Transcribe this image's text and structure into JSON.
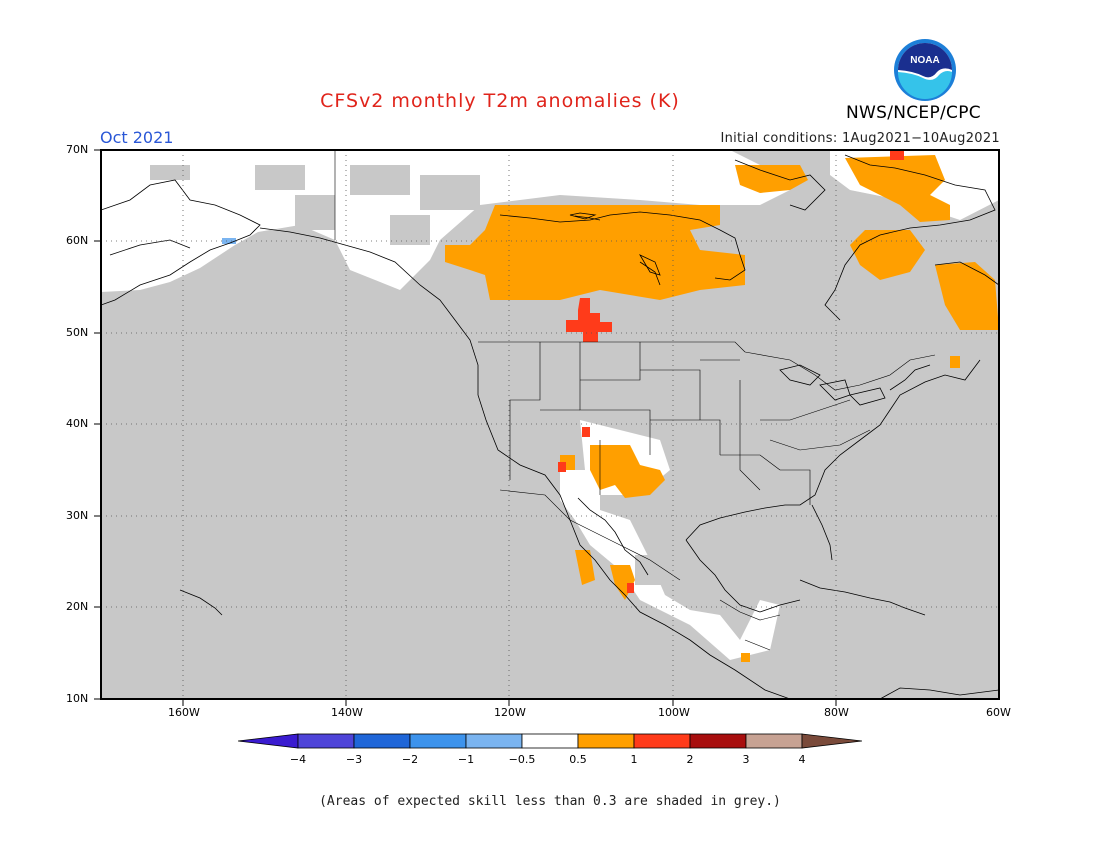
{
  "header": {
    "title": "CFSv2 monthly T2m anomalies (K)",
    "month": "Oct 2021",
    "initial_conditions": "Initial conditions: 1Aug2021−10Aug2021",
    "organization": "NWS/NCEP/CPC",
    "logo_text": "NOAA"
  },
  "axes": {
    "lat_labels": [
      "70N",
      "60N",
      "50N",
      "40N",
      "30N",
      "20N",
      "10N"
    ],
    "lon_labels": [
      "160W",
      "140W",
      "120W",
      "100W",
      "80W",
      "60W"
    ]
  },
  "colorbar": {
    "labels": [
      "−4",
      "−3",
      "−2",
      "−1",
      "−0.5",
      "0.5",
      "1",
      "2",
      "3",
      "4"
    ],
    "colors": [
      "#3a1bd0",
      "#4e44d8",
      "#1f66d8",
      "#3d93ec",
      "#7ab4f0",
      "#ffffff",
      "#ff9f00",
      "#ff3b1a",
      "#a80e0e",
      "#c7a293",
      "#7a4a3a"
    ]
  },
  "note": "(Areas of expected skill less than 0.3 are shaded in grey.)",
  "map_colors": {
    "grey": "#c8c8c8",
    "white": "#ffffff",
    "orange": "#ff9f00",
    "red": "#ff3b1a",
    "light_blue": "#7ab4f0"
  }
}
